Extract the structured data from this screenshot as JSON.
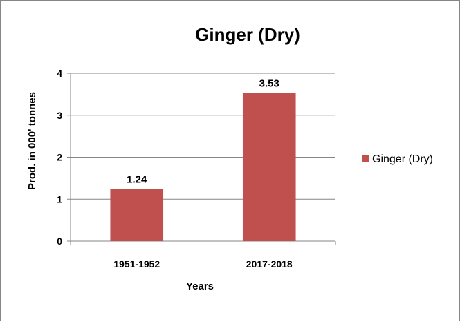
{
  "chart_data": {
    "type": "bar",
    "title": "Ginger (Dry)",
    "xlabel": "Years",
    "ylabel": "Prod. in 000' tonnes",
    "categories": [
      "1951-1952",
      "2017-2018"
    ],
    "series": [
      {
        "name": "Ginger (Dry)",
        "values": [
          1.24,
          3.53
        ],
        "color": "#C0504D"
      }
    ],
    "data_labels": [
      "1.24",
      "3.53"
    ],
    "ylim": [
      0,
      4
    ],
    "yticks": [
      "0",
      "1",
      "2",
      "3",
      "4"
    ],
    "grid": true,
    "legend_position": "right"
  }
}
